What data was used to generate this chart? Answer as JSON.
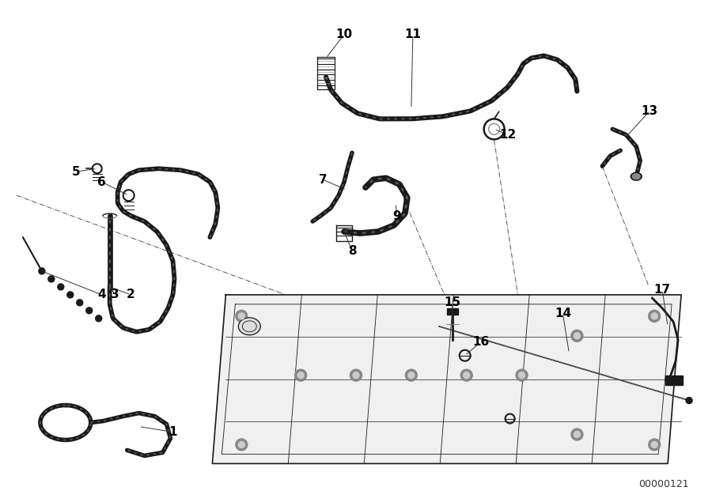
{
  "background_color": "#ffffff",
  "image_id": "00000121",
  "fig_width": 9.0,
  "fig_height": 6.35,
  "line_color": "#1a1a1a",
  "label_color": "#000000",
  "font_size_labels": 11,
  "font_size_id": 9,
  "hose_lw": 2.2,
  "hose_inner_lw": 1.0,
  "thin_lw": 0.8,
  "leader_lw": 0.7
}
